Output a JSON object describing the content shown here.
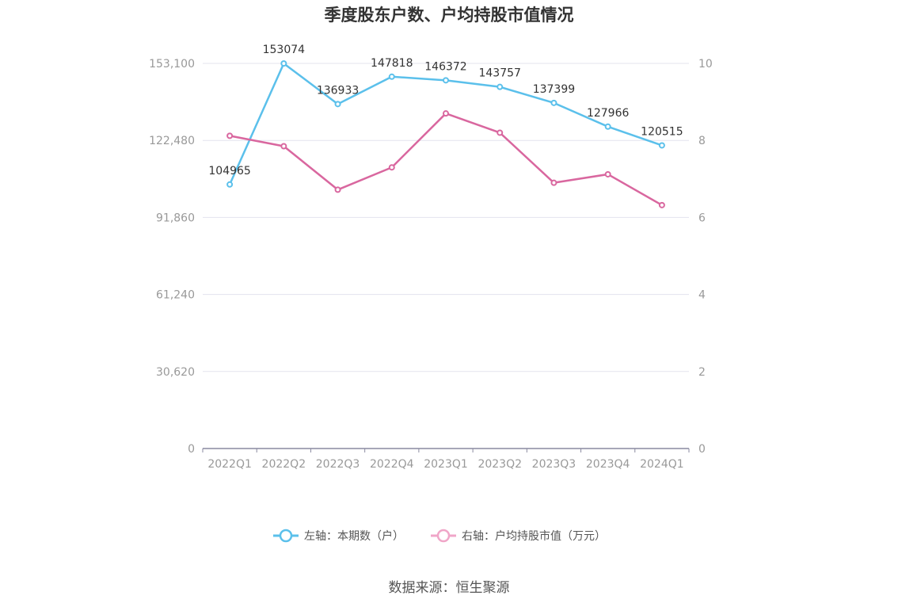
{
  "chart_data": {
    "type": "line",
    "title": "季度股东户数、户均持股市值情况",
    "categories": [
      "2022Q1",
      "2022Q2",
      "2022Q3",
      "2022Q4",
      "2023Q1",
      "2023Q2",
      "2023Q3",
      "2023Q4",
      "2024Q1"
    ],
    "left_axis": {
      "ticks": [
        "0",
        "30,620",
        "61,240",
        "91,860",
        "122,480",
        "153,100"
      ],
      "ylim": [
        0,
        153100
      ]
    },
    "right_axis": {
      "ticks": [
        "0",
        "2",
        "4",
        "6",
        "8",
        "10"
      ],
      "ylim": [
        0,
        10
      ]
    },
    "series": [
      {
        "name": "左轴：本期数（户）",
        "axis": "left",
        "color": "#5bc0eb",
        "values": [
          104965,
          153074,
          136933,
          147818,
          146372,
          143757,
          137399,
          127966,
          120515
        ],
        "labels": [
          "104965",
          "153074",
          "136933",
          "147818",
          "146372",
          "143757",
          "137399",
          "127966",
          "120515"
        ]
      },
      {
        "name": "右轴：户均持股市值（万元）",
        "axis": "right",
        "color": "#d9679f",
        "values": [
          8.12,
          7.85,
          6.72,
          7.3,
          8.7,
          8.2,
          6.9,
          7.12,
          6.32
        ]
      }
    ],
    "legend_position": "bottom",
    "grid": true
  },
  "source": "数据来源：恒生聚源"
}
